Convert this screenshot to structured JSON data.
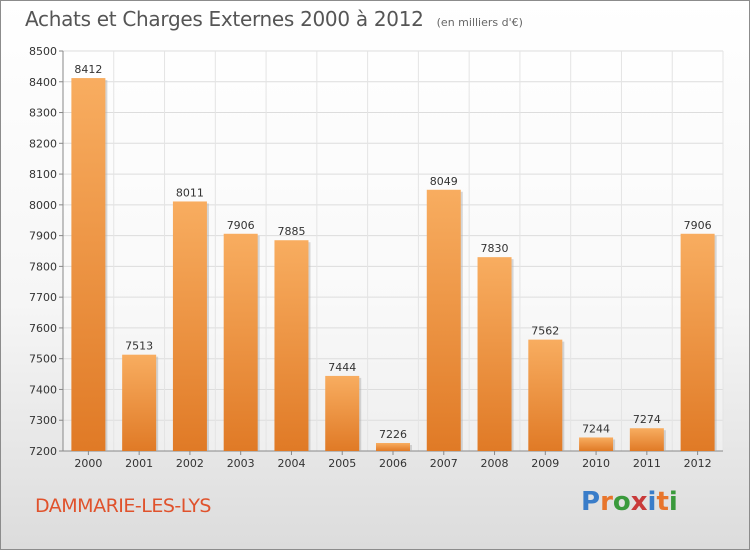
{
  "title": "Achats et Charges Externes 2000 à 2012",
  "subtitle": "(en milliers d'€)",
  "place": "DAMMARIE-LES-LYS",
  "logo": {
    "text": "Proxiti",
    "colors": [
      "#3a7dc9",
      "#e8752b",
      "#3a9a3c",
      "#c93a3a",
      "#3a7dc9",
      "#e8752b",
      "#3a9a3c"
    ]
  },
  "colors": {
    "bar_light": "#f8ad60",
    "bar_dark": "#e07a26",
    "place_text": "#e0522c"
  },
  "chart_data": {
    "type": "bar",
    "categories": [
      "2000",
      "2001",
      "2002",
      "2003",
      "2004",
      "2005",
      "2006",
      "2007",
      "2008",
      "2009",
      "2010",
      "2011",
      "2012"
    ],
    "values": [
      8412,
      7513,
      8011,
      7906,
      7885,
      7444,
      7226,
      8049,
      7830,
      7562,
      7244,
      7274,
      7906
    ],
    "ylim": [
      7200,
      8500
    ],
    "yticks": [
      7200,
      7300,
      7400,
      7500,
      7600,
      7700,
      7800,
      7900,
      8000,
      8100,
      8200,
      8300,
      8400,
      8500
    ],
    "grid": true,
    "xlabel": "",
    "ylabel": ""
  }
}
